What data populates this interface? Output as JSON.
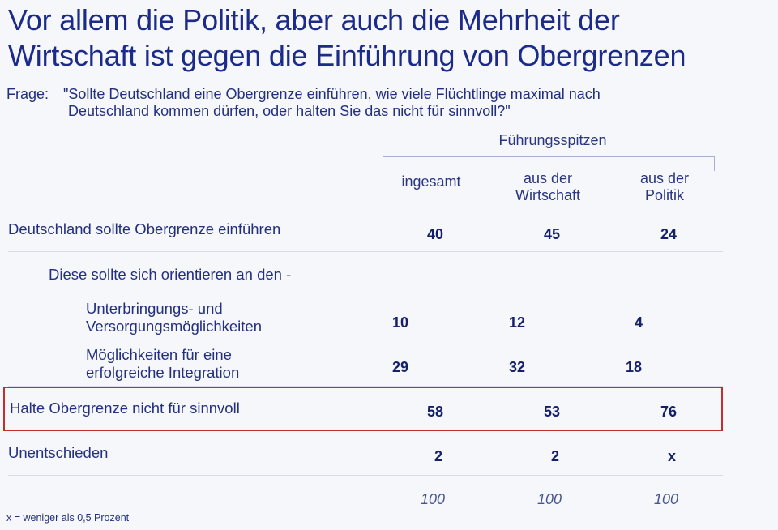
{
  "title": {
    "line1": "Vor allem die Politik, aber auch die Mehrheit der",
    "line2": "Wirtschaft ist gegen die Einführung von Obergrenzen"
  },
  "question": {
    "label": "Frage:",
    "line1": "\"Sollte Deutschland eine Obergrenze einführen, wie viele Flüchtlinge maximal nach",
    "line2": "Deutschland kommen dürfen, oder halten Sie das nicht für sinnvoll?\""
  },
  "group_header": "Führungsspitzen",
  "columns": [
    {
      "line1": "ingesamt",
      "line2": ""
    },
    {
      "line1": "aus der",
      "line2": "Wirtschaft"
    },
    {
      "line1": "aus der",
      "line2": "Politik"
    }
  ],
  "rows": [
    {
      "line1": "Deutschland sollte Obergrenze einführen",
      "line2": "",
      "values": [
        "40",
        "45",
        "24"
      ]
    },
    {
      "line1": "Diese sollte sich orientieren an den -",
      "line2": "",
      "values": []
    },
    {
      "line1": "Unterbringungs- und",
      "line2": "Versorgungsmöglichkeiten",
      "values": [
        "10",
        "12",
        "4"
      ]
    },
    {
      "line1": "Möglichkeiten für eine",
      "line2": "erfolgreiche Integration",
      "values": [
        "29",
        "32",
        "18"
      ]
    },
    {
      "line1": "Halte Obergrenze nicht für sinnvoll",
      "line2": "",
      "values": [
        "58",
        "53",
        "76"
      ]
    },
    {
      "line1": "Unentschieden",
      "line2": "",
      "values": [
        "2",
        "2",
        "x"
      ]
    }
  ],
  "totals": [
    "100",
    "100",
    "100"
  ],
  "footnote": "x = weniger als 0,5 Prozent",
  "colors": {
    "text": "#1c2a8a",
    "highlight": "#c72c2c",
    "background": "#f5f7fb"
  },
  "chart_data": {
    "type": "table",
    "title": "Vor allem die Politik, aber auch die Mehrheit der Wirtschaft ist gegen die Einführung von Obergrenzen",
    "column_group": "Führungsspitzen",
    "columns": [
      "ingesamt",
      "aus der Wirtschaft",
      "aus der Politik"
    ],
    "series": [
      {
        "name": "Deutschland sollte Obergrenze einführen",
        "values": [
          40,
          45,
          24
        ]
      },
      {
        "name": "Unterbringungs- und Versorgungsmöglichkeiten",
        "values": [
          10,
          12,
          4
        ]
      },
      {
        "name": "Möglichkeiten für eine erfolgreiche Integration",
        "values": [
          29,
          32,
          18
        ]
      },
      {
        "name": "Halte Obergrenze nicht für sinnvoll",
        "values": [
          58,
          53,
          76
        ]
      },
      {
        "name": "Unentschieden",
        "values": [
          2,
          2,
          "x"
        ]
      }
    ],
    "totals": [
      100,
      100,
      100
    ],
    "unit": "Prozent"
  }
}
